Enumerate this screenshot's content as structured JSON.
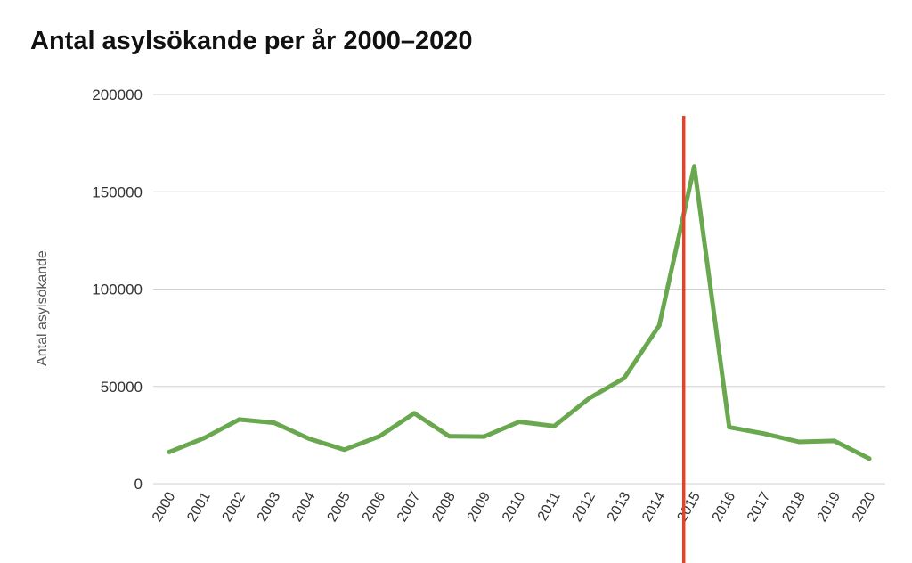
{
  "chart_data": {
    "type": "line",
    "title": "Antal asylsökande per år 2000–2020",
    "xlabel": "",
    "ylabel": "Antal asylsökande",
    "x": [
      "2000",
      "2001",
      "2002",
      "2003",
      "2004",
      "2005",
      "2006",
      "2007",
      "2008",
      "2009",
      "2010",
      "2011",
      "2012",
      "2013",
      "2014",
      "2015",
      "2016",
      "2017",
      "2018",
      "2019",
      "2020"
    ],
    "series": [
      {
        "values": [
          16300,
          23500,
          33000,
          31300,
          23100,
          17500,
          24300,
          36200,
          24400,
          24200,
          31800,
          29600,
          43900,
          54300,
          81300,
          163000,
          29000,
          25700,
          21500,
          22000,
          12900
        ],
        "color": "#6aa84f"
      }
    ],
    "ylim": [
      0,
      200000
    ],
    "yticks": [
      "0",
      "50000",
      "100000",
      "150000",
      "200000"
    ],
    "grid": true,
    "marker_line": {
      "between": [
        "2014",
        "2015"
      ],
      "color": "#e0442e"
    }
  }
}
